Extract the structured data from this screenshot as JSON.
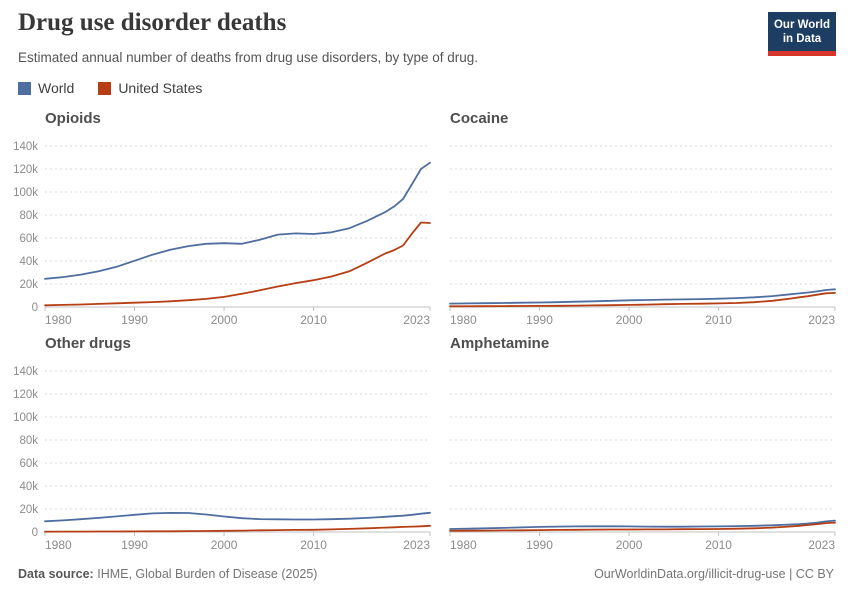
{
  "header": {
    "title": "Drug use disorder deaths",
    "subtitle": "Estimated annual number of deaths from drug use disorders, by type of drug."
  },
  "logo": {
    "line1": "Our World",
    "line2": "in Data"
  },
  "legend": [
    {
      "label": "World",
      "color": "#4e6ea0"
    },
    {
      "label": "United States",
      "color": "#b63e14"
    }
  ],
  "colors": {
    "world": "#4e6ea0",
    "united_states": "#b63e14",
    "grid": "#d9d9d9",
    "axis": "#c2c2c2",
    "tick_text": "#8c8c8c",
    "logo_bg": "#1d3d63",
    "logo_bar": "#d7352b"
  },
  "footer": {
    "source_label": "Data source:",
    "source": "IHME, Global Burden of Disease (2025)",
    "link": "OurWorldinData.org/illicit-drug-use",
    "separator": " | ",
    "license": "CC BY"
  },
  "chart_data": [
    {
      "type": "line",
      "title": "Opioids",
      "xlim": [
        1980,
        2023
      ],
      "ylim": [
        0,
        140000
      ],
      "xticks": [
        1980,
        1990,
        2000,
        2010,
        2023
      ],
      "yticks": [
        0,
        20000,
        40000,
        60000,
        80000,
        100000,
        120000,
        140000
      ],
      "ytick_labels": [
        "0",
        "20k",
        "40k",
        "60k",
        "80k",
        "100k",
        "120k",
        "140k"
      ],
      "show_y_labels": true,
      "grid": true,
      "x": [
        1980,
        1982,
        1984,
        1986,
        1988,
        1990,
        1992,
        1994,
        1996,
        1998,
        2000,
        2002,
        2004,
        2006,
        2008,
        2010,
        2012,
        2014,
        2016,
        2018,
        2019,
        2020,
        2021,
        2022,
        2023
      ],
      "series": [
        {
          "name": "World",
          "color": "#4e6ea0",
          "values": [
            24500,
            26000,
            28200,
            31000,
            35000,
            40200,
            45500,
            49800,
            53000,
            55000,
            55500,
            55000,
            58500,
            63000,
            64000,
            63500,
            65000,
            68500,
            75000,
            82500,
            87500,
            94000,
            107000,
            120000,
            125500
          ]
        },
        {
          "name": "United States",
          "color": "#b63e14",
          "values": [
            1500,
            1800,
            2200,
            2700,
            3200,
            3700,
            4300,
            5000,
            5900,
            7000,
            8800,
            11500,
            14500,
            17800,
            20800,
            23300,
            26500,
            31000,
            38500,
            46500,
            49500,
            53500,
            64000,
            73500,
            73000
          ]
        }
      ]
    },
    {
      "type": "line",
      "title": "Cocaine",
      "xlim": [
        1980,
        2023
      ],
      "ylim": [
        0,
        140000
      ],
      "xticks": [
        1980,
        1990,
        2000,
        2010,
        2023
      ],
      "yticks": [
        0,
        20000,
        40000,
        60000,
        80000,
        100000,
        120000,
        140000
      ],
      "ytick_labels": [
        "0",
        "20k",
        "40k",
        "60k",
        "80k",
        "100k",
        "120k",
        "140k"
      ],
      "show_y_labels": false,
      "grid": true,
      "x": [
        1980,
        1982,
        1984,
        1986,
        1988,
        1990,
        1992,
        1994,
        1996,
        1998,
        2000,
        2002,
        2004,
        2006,
        2008,
        2010,
        2012,
        2014,
        2016,
        2018,
        2019,
        2020,
        2021,
        2022,
        2023
      ],
      "series": [
        {
          "name": "World",
          "color": "#4e6ea0",
          "values": [
            3000,
            3100,
            3300,
            3500,
            3700,
            3900,
            4200,
            4600,
            5000,
            5400,
            5800,
            6100,
            6400,
            6600,
            6900,
            7200,
            7700,
            8400,
            9500,
            11000,
            11800,
            12600,
            13600,
            14800,
            15400
          ]
        },
        {
          "name": "United States",
          "color": "#b63e14",
          "values": [
            600,
            650,
            700,
            780,
            860,
            950,
            1050,
            1200,
            1400,
            1600,
            1800,
            2100,
            2400,
            2700,
            2900,
            3100,
            3500,
            4200,
            5400,
            7300,
            8400,
            9400,
            10700,
            11900,
            12300
          ]
        }
      ]
    },
    {
      "type": "line",
      "title": "Other drugs",
      "xlim": [
        1980,
        2023
      ],
      "ylim": [
        0,
        140000
      ],
      "xticks": [
        1980,
        1990,
        2000,
        2010,
        2023
      ],
      "yticks": [
        0,
        20000,
        40000,
        60000,
        80000,
        100000,
        120000,
        140000
      ],
      "ytick_labels": [
        "0",
        "20k",
        "40k",
        "60k",
        "80k",
        "100k",
        "120k",
        "140k"
      ],
      "show_y_labels": true,
      "grid": true,
      "x": [
        1980,
        1982,
        1984,
        1986,
        1988,
        1990,
        1992,
        1994,
        1996,
        1998,
        2000,
        2002,
        2004,
        2006,
        2008,
        2010,
        2012,
        2014,
        2016,
        2018,
        2019,
        2020,
        2021,
        2022,
        2023
      ],
      "series": [
        {
          "name": "World",
          "color": "#4e6ea0",
          "values": [
            9300,
            10100,
            11100,
            12300,
            13600,
            15000,
            16200,
            16600,
            16500,
            15200,
            13500,
            12000,
            11200,
            11000,
            10900,
            10900,
            11100,
            11600,
            12300,
            13200,
            13700,
            14200,
            15000,
            15900,
            16700
          ]
        },
        {
          "name": "United States",
          "color": "#b63e14",
          "values": [
            300,
            320,
            350,
            400,
            450,
            500,
            570,
            650,
            760,
            900,
            1050,
            1250,
            1450,
            1650,
            1800,
            1950,
            2250,
            2700,
            3200,
            3800,
            4100,
            4400,
            4700,
            5000,
            5400
          ]
        }
      ]
    },
    {
      "type": "line",
      "title": "Amphetamine",
      "xlim": [
        1980,
        2023
      ],
      "ylim": [
        0,
        140000
      ],
      "xticks": [
        1980,
        1990,
        2000,
        2010,
        2023
      ],
      "yticks": [
        0,
        20000,
        40000,
        60000,
        80000,
        100000,
        120000,
        140000
      ],
      "ytick_labels": [
        "0",
        "20k",
        "40k",
        "60k",
        "80k",
        "100k",
        "120k",
        "140k"
      ],
      "show_y_labels": false,
      "grid": true,
      "x": [
        1980,
        1982,
        1984,
        1986,
        1988,
        1990,
        1992,
        1994,
        1996,
        1998,
        2000,
        2002,
        2004,
        2006,
        2008,
        2010,
        2012,
        2014,
        2016,
        2018,
        2019,
        2020,
        2021,
        2022,
        2023
      ],
      "series": [
        {
          "name": "World",
          "color": "#4e6ea0",
          "values": [
            2600,
            2900,
            3200,
            3600,
            4000,
            4400,
            4700,
            4900,
            5000,
            4950,
            4850,
            4700,
            4600,
            4650,
            4750,
            4900,
            5100,
            5400,
            5800,
            6500,
            6900,
            7400,
            8100,
            9200,
            9900
          ]
        },
        {
          "name": "United States",
          "color": "#b63e14",
          "values": [
            1000,
            1100,
            1200,
            1350,
            1500,
            1650,
            1800,
            1950,
            2050,
            2150,
            2200,
            2250,
            2300,
            2400,
            2500,
            2600,
            2850,
            3200,
            3800,
            4800,
            5400,
            6100,
            6900,
            7700,
            8200
          ]
        }
      ]
    }
  ]
}
